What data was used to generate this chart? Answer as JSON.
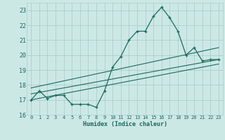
{
  "xlabel": "Humidex (Indice chaleur)",
  "bg_color": "#cce8e5",
  "grid_color": "#aacfcc",
  "line_color": "#1a6b5e",
  "xlim": [
    -0.5,
    23.5
  ],
  "ylim": [
    16,
    23.5
  ],
  "yticks": [
    16,
    17,
    18,
    19,
    20,
    21,
    22,
    23
  ],
  "xticks": [
    0,
    1,
    2,
    3,
    4,
    5,
    6,
    7,
    8,
    9,
    10,
    11,
    12,
    13,
    14,
    15,
    16,
    17,
    18,
    19,
    20,
    21,
    22,
    23
  ],
  "main_x": [
    0,
    1,
    2,
    3,
    4,
    5,
    6,
    7,
    8,
    9,
    10,
    11,
    12,
    13,
    14,
    15,
    16,
    17,
    18,
    19,
    20,
    21,
    22,
    23
  ],
  "main_y": [
    17.0,
    17.6,
    17.1,
    17.3,
    17.3,
    16.7,
    16.7,
    16.7,
    16.5,
    17.6,
    19.2,
    19.9,
    21.0,
    21.6,
    21.6,
    22.6,
    23.2,
    22.5,
    21.6,
    20.0,
    20.5,
    19.6,
    19.7,
    19.7
  ],
  "line1_x": [
    0,
    23
  ],
  "line1_y": [
    17.0,
    19.4
  ],
  "line2_x": [
    0,
    23
  ],
  "line2_y": [
    17.4,
    19.7
  ],
  "line3_x": [
    0,
    23
  ],
  "line3_y": [
    17.8,
    20.5
  ]
}
